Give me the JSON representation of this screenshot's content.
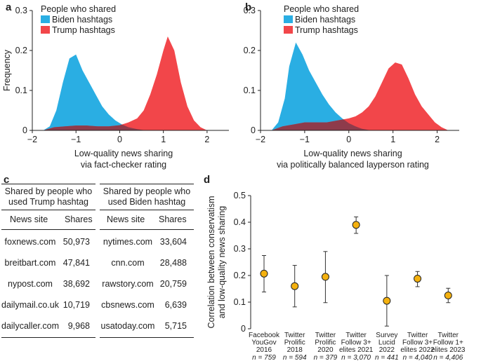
{
  "colors": {
    "biden": "#2aaee3",
    "trump": "#f2464a",
    "overlap": "#8e3b4b",
    "point": "#f4b10f"
  },
  "panels": {
    "a": "a",
    "b": "b",
    "c": "c",
    "d": "d"
  },
  "legend": {
    "title": "People who shared",
    "biden": "Biden hashtags",
    "trump": "Trump hashtags"
  },
  "chart_data": [
    {
      "id": "a",
      "type": "area",
      "ylabel": "Frequency",
      "xlabel_lines": [
        "Low-quality news sharing",
        "via fact-checker rating"
      ],
      "xlim": [
        -2,
        2.5
      ],
      "ylim": [
        0,
        0.3
      ],
      "xticks": [
        -2,
        -1,
        0,
        1,
        2
      ],
      "xtick_labels": [
        "−2",
        "−1",
        "0",
        "1",
        "2"
      ],
      "yticks": [
        0,
        0.1,
        0.2,
        0.3
      ],
      "ytick_labels": [
        "0",
        "0.1",
        "0.2",
        "0.3"
      ],
      "series": [
        {
          "name": "Biden hashtags",
          "x": [
            -1.75,
            -1.6,
            -1.45,
            -1.3,
            -1.15,
            -1.0,
            -0.85,
            -0.7,
            -0.55,
            -0.4,
            -0.25,
            -0.1,
            0.05,
            0.2,
            0.4,
            0.6
          ],
          "y": [
            0,
            0.01,
            0.05,
            0.12,
            0.18,
            0.19,
            0.15,
            0.12,
            0.09,
            0.06,
            0.04,
            0.025,
            0.015,
            0.008,
            0.003,
            0
          ]
        },
        {
          "name": "Trump hashtags",
          "x": [
            -1.75,
            -1.5,
            -1.25,
            -1.0,
            -0.75,
            -0.5,
            -0.25,
            0,
            0.2,
            0.4,
            0.55,
            0.7,
            0.85,
            1.0,
            1.1,
            1.25,
            1.4,
            1.55,
            1.7,
            1.85,
            2.0
          ],
          "y": [
            0,
            0.008,
            0.01,
            0.012,
            0.012,
            0.01,
            0.01,
            0.013,
            0.02,
            0.03,
            0.05,
            0.09,
            0.14,
            0.2,
            0.235,
            0.2,
            0.12,
            0.06,
            0.025,
            0.008,
            0
          ]
        }
      ]
    },
    {
      "id": "b",
      "type": "area",
      "ylabel": "",
      "xlabel_lines": [
        "Low-quality news sharing",
        "via politically balanced layperson rating"
      ],
      "xlim": [
        -2,
        2.5
      ],
      "ylim": [
        0,
        0.3
      ],
      "xticks": [
        -2,
        -1,
        0,
        1,
        2
      ],
      "xtick_labels": [
        "−2",
        "−1",
        "0",
        "1",
        "2"
      ],
      "yticks": [
        0,
        0.1,
        0.2,
        0.3
      ],
      "ytick_labels": [
        "0",
        "0.1",
        "0.2",
        "0.3"
      ],
      "series": [
        {
          "name": "Biden hashtags",
          "x": [
            -1.75,
            -1.6,
            -1.45,
            -1.35,
            -1.2,
            -1.05,
            -0.9,
            -0.75,
            -0.6,
            -0.45,
            -0.3,
            -0.15,
            0,
            0.15,
            0.3,
            0.5
          ],
          "y": [
            0,
            0.02,
            0.08,
            0.16,
            0.22,
            0.19,
            0.15,
            0.12,
            0.09,
            0.065,
            0.045,
            0.03,
            0.018,
            0.01,
            0.004,
            0
          ]
        },
        {
          "name": "Trump hashtags",
          "x": [
            -1.75,
            -1.5,
            -1.25,
            -1.0,
            -0.75,
            -0.5,
            -0.25,
            0,
            0.15,
            0.3,
            0.45,
            0.6,
            0.75,
            0.9,
            1.05,
            1.2,
            1.35,
            1.5,
            1.65,
            1.8,
            1.95,
            2.1,
            2.25
          ],
          "y": [
            0,
            0.01,
            0.015,
            0.02,
            0.02,
            0.02,
            0.025,
            0.03,
            0.035,
            0.045,
            0.06,
            0.085,
            0.12,
            0.155,
            0.17,
            0.165,
            0.13,
            0.09,
            0.06,
            0.04,
            0.02,
            0.008,
            0
          ]
        }
      ]
    },
    {
      "id": "d",
      "type": "scatter",
      "ylabel_lines": [
        "Correlation between conservatism",
        "and low-quality news sharing"
      ],
      "ylim": [
        0,
        0.5
      ],
      "yticks": [
        0,
        0.1,
        0.2,
        0.3,
        0.4,
        0.5
      ],
      "ytick_labels": [
        "0",
        "0.1",
        "0.2",
        "0.3",
        "0.4",
        "0.5"
      ],
      "points": [
        {
          "label_lines": [
            "Facebook",
            "YouGov",
            "2016"
          ],
          "n": "n = 759",
          "value": 0.207,
          "ci": [
            0.138,
            0.275
          ]
        },
        {
          "label_lines": [
            "Twitter",
            "Prolific",
            "2018"
          ],
          "n": "n = 594",
          "value": 0.16,
          "ci": [
            0.082,
            0.238
          ]
        },
        {
          "label_lines": [
            "Twitter",
            "Prolific",
            "2020"
          ],
          "n": "n = 379",
          "value": 0.195,
          "ci": [
            0.098,
            0.29
          ]
        },
        {
          "label_lines": [
            "Twitter",
            "Follow 3+",
            "elites 2021"
          ],
          "n": "n = 3,070",
          "value": 0.39,
          "ci": [
            0.358,
            0.42
          ]
        },
        {
          "label_lines": [
            "Survey",
            "Lucid",
            "2022"
          ],
          "n": "n = 441",
          "value": 0.105,
          "ci": [
            0.01,
            0.2
          ]
        },
        {
          "label_lines": [
            "Twitter",
            "Follow 3+",
            "elites 2022"
          ],
          "n": "n = 4,040",
          "value": 0.188,
          "ci": [
            0.158,
            0.215
          ]
        },
        {
          "label_lines": [
            "Twitter",
            "Follow 1+",
            "elites 2023"
          ],
          "n": "n = 4,406",
          "value": 0.125,
          "ci": [
            0.098,
            0.152
          ]
        }
      ]
    }
  ],
  "tables": {
    "trump": {
      "title_lines": [
        "Shared by people who",
        "used Trump hashtag"
      ],
      "col_site": "News site",
      "col_shares": "Shares",
      "rows": [
        {
          "site": "foxnews.com",
          "shares": "50,973"
        },
        {
          "site": "breitbart.com",
          "shares": "47,841"
        },
        {
          "site": "nypost.com",
          "shares": "38,692"
        },
        {
          "site": "dailymail.co.uk",
          "shares": "10,719"
        },
        {
          "site": "dailycaller.com",
          "shares": "9,968"
        }
      ]
    },
    "biden": {
      "title_lines": [
        "Shared by people who",
        "used Biden hashtag"
      ],
      "col_site": "News site",
      "col_shares": "Shares",
      "rows": [
        {
          "site": "nytimes.com",
          "shares": "33,604"
        },
        {
          "site": "cnn.com",
          "shares": "28,488"
        },
        {
          "site": "rawstory.com",
          "shares": "20,759"
        },
        {
          "site": "cbsnews.com",
          "shares": "6,639"
        },
        {
          "site": "usatoday.com",
          "shares": "5,715"
        }
      ]
    }
  }
}
